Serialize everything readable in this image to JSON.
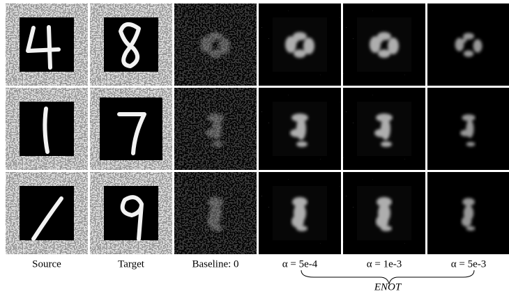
{
  "columns": [
    "Source",
    "Target",
    "Baseline: 0",
    "α = 5e-4",
    "α = 1e-3",
    "α = 5e-3"
  ],
  "group_label": "ENOT"
}
